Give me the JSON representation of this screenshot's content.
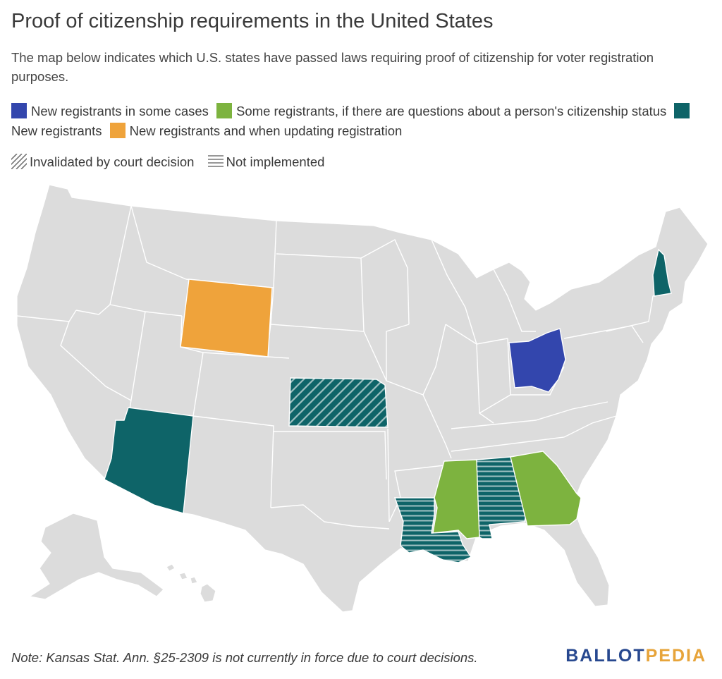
{
  "title": "Proof of citizenship requirements in the United States",
  "subtitle": "The map below indicates which U.S. states have passed laws requiring proof of citizenship for voter registration purposes.",
  "legend": [
    {
      "label": "New registrants in some cases",
      "color": "#3346ad"
    },
    {
      "label": "Some registrants, if there are questions about a person's citizenship status",
      "color": "#7db33f"
    },
    {
      "label": "New registrants",
      "color": "#0e6468"
    },
    {
      "label": "New registrants and when updating registration",
      "color": "#efa33b"
    }
  ],
  "pattern_legend": [
    {
      "label": "Invalidated by court decision",
      "pattern": "diagonal-hatch"
    },
    {
      "label": "Not implemented",
      "pattern": "horizontal-lines"
    }
  ],
  "colors": {
    "default_state": "#dcdcdc",
    "border": "#ffffff",
    "pattern_line": "#9fc1c2"
  },
  "note": "Note: Kansas Stat. Ann. §25-2309 is not currently in force due to court decisions.",
  "logo": {
    "part1": "BALLOT",
    "part2": "PEDIA"
  }
}
